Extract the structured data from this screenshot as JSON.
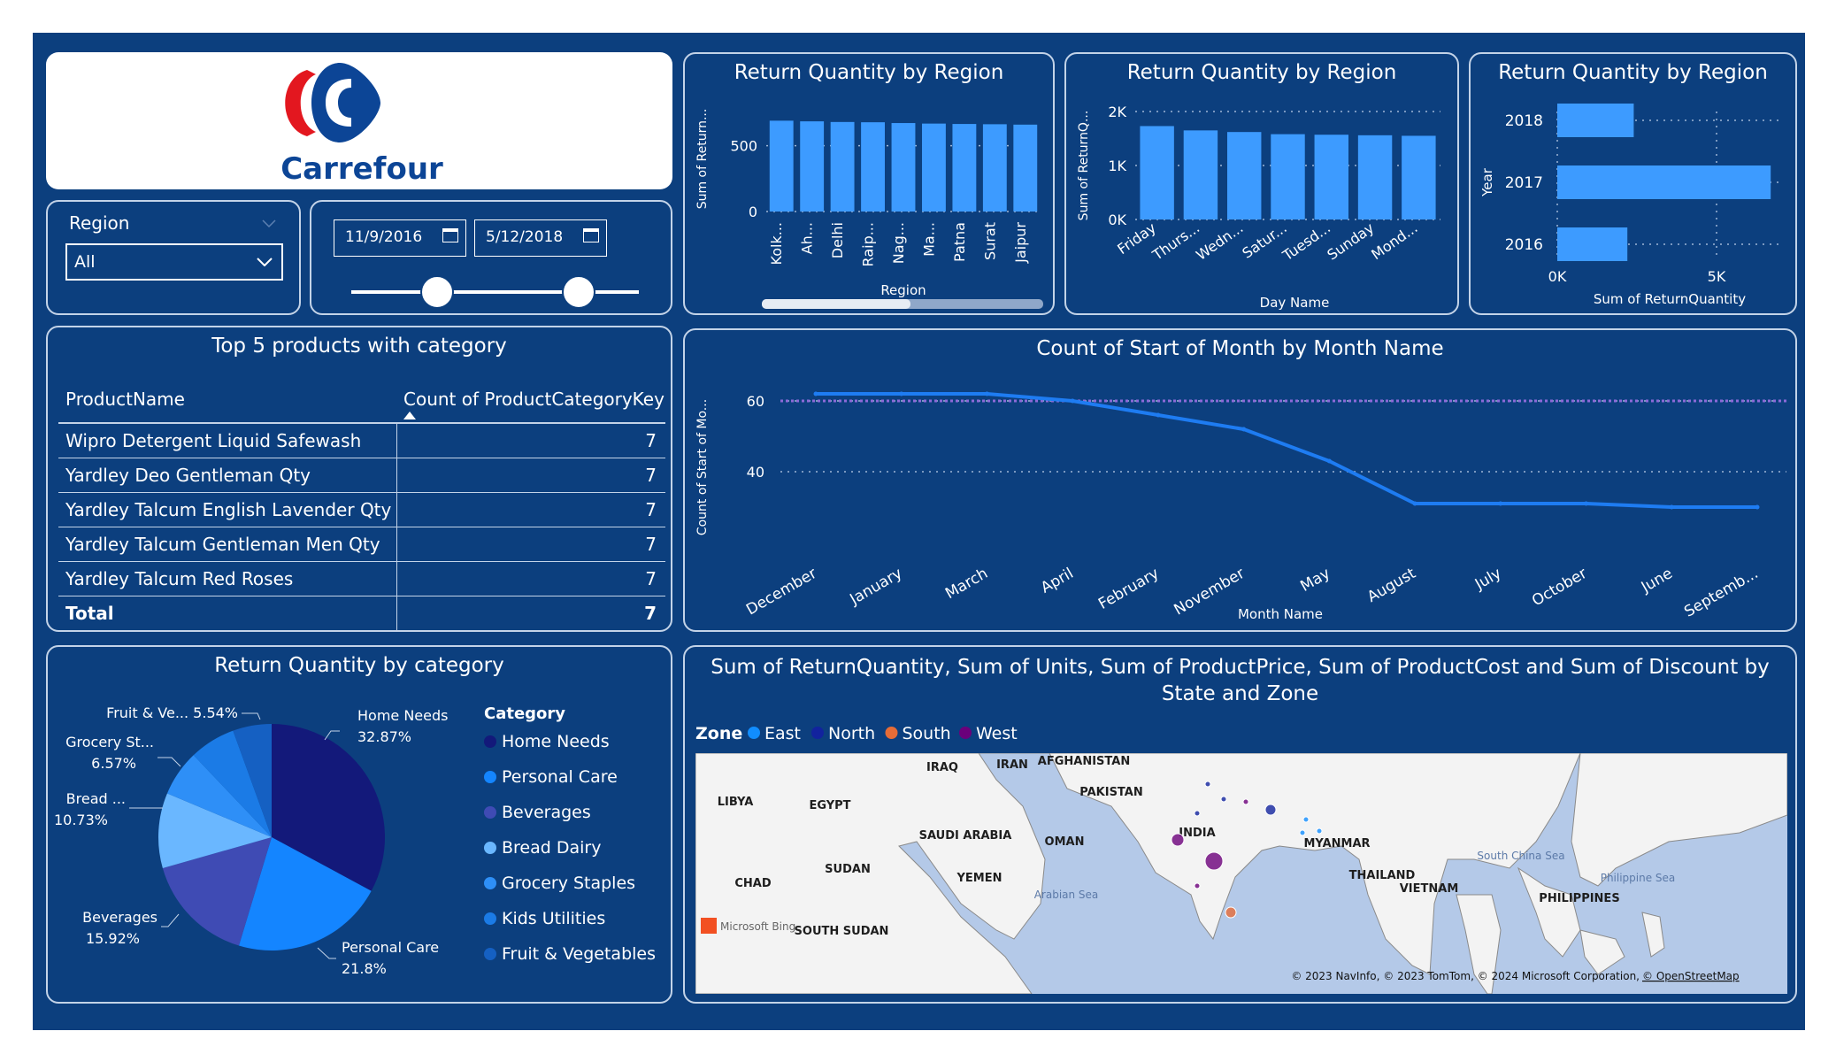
{
  "brand": {
    "name": "Carrefour"
  },
  "colors": {
    "background": "#0c3f7e",
    "bar": "#3d9bff",
    "line": "#1e7cf2",
    "dark_navy": "#13197a",
    "map_water": "#b4c9e8",
    "map_land": "#f3f3f3"
  },
  "region_slicer": {
    "label": "Region",
    "selected": "All"
  },
  "date_slicer": {
    "start": "11/9/2016",
    "end": "5/12/2018"
  },
  "table": {
    "title": "Top 5 products with category",
    "columns": [
      "ProductName",
      "Count of ProductCategoryKey"
    ],
    "rows": [
      {
        "name": "Wipro Detergent Liquid Safewash",
        "count": "7"
      },
      {
        "name": "Yardley Deo Gentleman Qty",
        "count": "7"
      },
      {
        "name": "Yardley Talcum English Lavender Qty",
        "count": "7"
      },
      {
        "name": "Yardley Talcum Gentleman Men Qty",
        "count": "7"
      },
      {
        "name": "Yardley Talcum Red Roses",
        "count": "7"
      }
    ],
    "total_label": "Total",
    "total_value": "7"
  },
  "map": {
    "title": "Sum of ReturnQuantity, Sum of Units, Sum of ProductPrice, Sum of ProductCost and Sum of Discount by State and Zone",
    "legend_title": "Zone",
    "legend": [
      {
        "name": "East",
        "color": "#118dff"
      },
      {
        "name": "North",
        "color": "#12239e"
      },
      {
        "name": "South",
        "color": "#e66c37"
      },
      {
        "name": "West",
        "color": "#6b007b"
      }
    ],
    "labels": [
      "IRAQ",
      "IRAN",
      "AFGHANISTAN",
      "LIBYA",
      "EGYPT",
      "PAKISTAN",
      "SAUDI ARABIA",
      "OMAN",
      "INDIA",
      "MYANMAR",
      "SUDAN",
      "YEMEN",
      "CHAD",
      "THAILAND",
      "VIETNAM",
      "PHILIPPINES",
      "SOUTH SUDAN"
    ],
    "water_labels": [
      "Arabian Sea",
      "South China Sea",
      "Philippine Sea"
    ],
    "attribution": "© 2023 NavInfo, © 2023 TomTom, © 2024 Microsoft Corporation,",
    "osm": "© OpenStreetMap",
    "provider": "Microsoft Bing"
  },
  "chart_data": [
    {
      "type": "bar",
      "title": "Return Quantity by Region",
      "xlabel": "Region",
      "ylabel": "Sum of Return...",
      "categories": [
        "Kolk...",
        "Ah...",
        "Delhi",
        "Raip...",
        "Nag...",
        "Ma...",
        "Patna",
        "Surat",
        "Jaipur"
      ],
      "values": [
        690,
        685,
        680,
        678,
        672,
        668,
        665,
        663,
        660
      ],
      "ylim": [
        0,
        800
      ],
      "yticks": [
        "0",
        "500"
      ],
      "grid": true
    },
    {
      "type": "bar",
      "title": "Return Quantity by Region",
      "xlabel": "Day Name",
      "ylabel": "Sum of ReturnQ...",
      "categories": [
        "Friday",
        "Thurs...",
        "Wedn...",
        "Satur...",
        "Tuesd...",
        "Sunday",
        "Mond..."
      ],
      "values": [
        1730,
        1650,
        1620,
        1580,
        1570,
        1560,
        1550
      ],
      "ylim": [
        0,
        2000
      ],
      "yticks": [
        "0K",
        "1K",
        "2K"
      ],
      "grid": true
    },
    {
      "type": "bar",
      "orientation": "horizontal",
      "title": "Return Quantity by Region",
      "xlabel": "Sum of ReturnQuantity",
      "ylabel": "Year",
      "categories": [
        "2018",
        "2017",
        "2016"
      ],
      "values": [
        2400,
        6700,
        2200
      ],
      "xlim": [
        0,
        7000
      ],
      "xticks": [
        "0K",
        "5K"
      ],
      "grid": true
    },
    {
      "type": "line",
      "title": "Count of Start of Month by Month Name",
      "xlabel": "Month Name",
      "ylabel": "Count of Start of Mo...",
      "categories": [
        "December",
        "January",
        "March",
        "April",
        "February",
        "November",
        "May",
        "August",
        "July",
        "October",
        "June",
        "Septemb..."
      ],
      "values": [
        62,
        62,
        62,
        60,
        56,
        52,
        43,
        31,
        31,
        31,
        30,
        30
      ],
      "ylim": [
        20,
        70
      ],
      "yticks": [
        "40",
        "60"
      ],
      "reference_line": 60,
      "grid": true
    },
    {
      "type": "pie",
      "title": "Return Quantity by category",
      "legend_title": "Category",
      "categories": [
        "Home Needs",
        "Personal Care",
        "Beverages",
        "Bread Dairy",
        "Grocery Staples",
        "Kids Utilities",
        "Fruit & Vegetables"
      ],
      "values": [
        32.87,
        21.8,
        15.92,
        10.73,
        6.57,
        6.57,
        5.54
      ],
      "colors": [
        "#13197a",
        "#1485ff",
        "#3f4bb4",
        "#6ab7ff",
        "#2e8ff7",
        "#1b7be6",
        "#1560c2"
      ],
      "slice_labels": [
        {
          "name": "Home Needs",
          "pct": "32.87%"
        },
        {
          "name": "Personal Care",
          "pct": "21.8%"
        },
        {
          "name": "Beverages",
          "pct": "15.92%"
        },
        {
          "name": "Bread ...",
          "pct": "10.73%"
        },
        {
          "name": "Grocery St...",
          "pct": "6.57%"
        },
        {
          "name": "Fruit & Ve...",
          "pct": "5.54%"
        }
      ]
    }
  ]
}
